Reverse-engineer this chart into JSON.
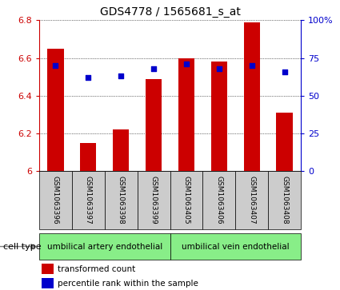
{
  "title": "GDS4778 / 1565681_s_at",
  "samples": [
    "GSM1063396",
    "GSM1063397",
    "GSM1063398",
    "GSM1063399",
    "GSM1063405",
    "GSM1063406",
    "GSM1063407",
    "GSM1063408"
  ],
  "transformed_counts": [
    6.65,
    6.15,
    6.22,
    6.49,
    6.6,
    6.58,
    6.79,
    6.31
  ],
  "percentile_ranks": [
    70,
    62,
    63,
    68,
    71,
    68,
    70,
    66
  ],
  "y_min": 6.0,
  "y_max": 6.8,
  "y_ticks": [
    6.0,
    6.2,
    6.4,
    6.6,
    6.8
  ],
  "right_y_ticks": [
    0,
    25,
    50,
    75,
    100
  ],
  "bar_color": "#cc0000",
  "dot_color": "#0000cc",
  "cell_type_labels": [
    "umbilical artery endothelial",
    "umbilical vein endothelial"
  ],
  "cell_type_split": 4,
  "cell_type_bg": "#88ee88",
  "sample_bg": "#cccccc",
  "bar_width": 0.5,
  "legend_red_label": "transformed count",
  "legend_blue_label": "percentile rank within the sample",
  "cell_type_header": "cell type"
}
